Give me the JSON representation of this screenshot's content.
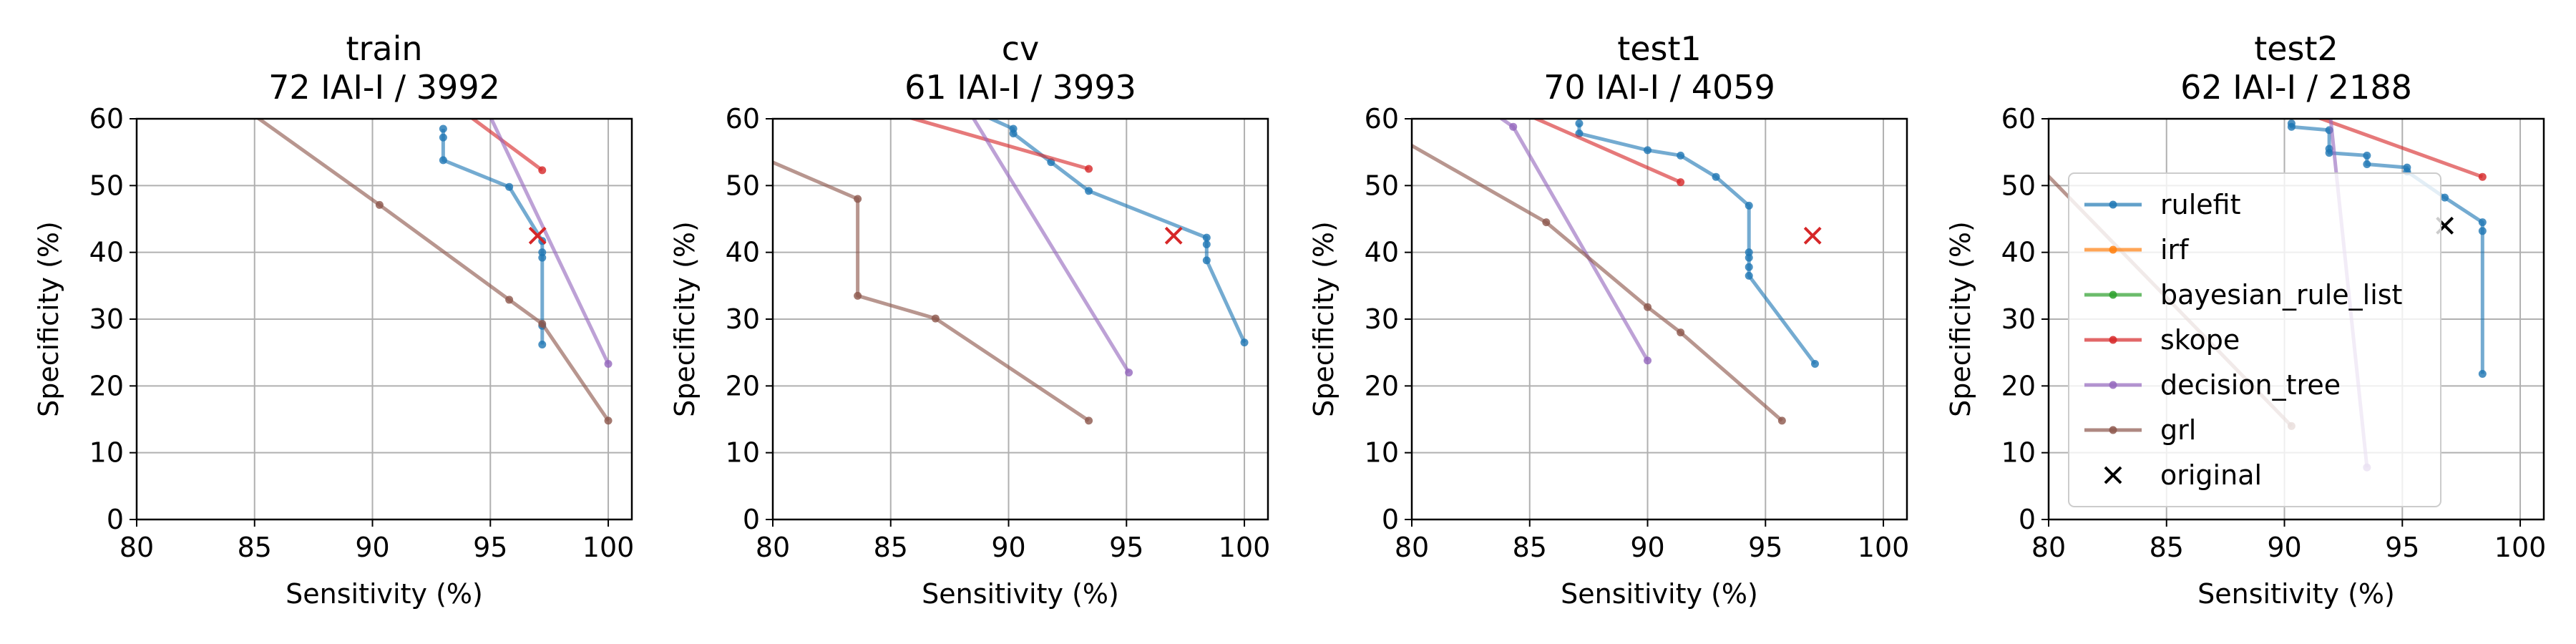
{
  "colors": {
    "rulefit": "#1f77b4",
    "irf": "#ff7f0e",
    "bayesian_rule_list": "#2ca02c",
    "skope": "#d62728",
    "decision_tree": "#9467bd",
    "grl": "#8c564b",
    "original": "#d62728"
  },
  "chart_data": [
    {
      "type": "line",
      "title_line1": "train",
      "title_line2": "72 IAI-I / 3992",
      "xlabel": "Sensitivity (%)",
      "ylabel": "Specificity (%)",
      "xlim": [
        80,
        101
      ],
      "ylim": [
        0,
        60
      ],
      "xticks": [
        80,
        85,
        90,
        95,
        100
      ],
      "yticks": [
        0,
        10,
        20,
        30,
        40,
        50,
        60
      ],
      "grid": true,
      "series": [
        {
          "name": "rulefit",
          "x": [
            93.0,
            93.0,
            93.0,
            95.8,
            97.2,
            97.2,
            97.2,
            97.2,
            97.2
          ],
          "y": [
            58.5,
            57.2,
            53.8,
            49.8,
            41.7,
            40.0,
            39.2,
            29.0,
            26.2
          ]
        },
        {
          "name": "skope",
          "x": [
            93.5,
            97.2
          ],
          "y": [
            62,
            52.3
          ]
        },
        {
          "name": "decision_tree",
          "x": [
            94.5,
            100.0
          ],
          "y": [
            64,
            23.3
          ]
        },
        {
          "name": "grl",
          "x": [
            84.0,
            90.3,
            95.8,
            97.2,
            100.0
          ],
          "y": [
            63,
            47.1,
            32.9,
            29.3,
            14.8
          ]
        }
      ],
      "original": {
        "x": 97.0,
        "y": 42.5
      },
      "legend": false
    },
    {
      "type": "line",
      "title_line1": "cv",
      "title_line2": "61 IAI-I / 3993",
      "xlabel": "Sensitivity (%)",
      "ylabel": "Specificity (%)",
      "xlim": [
        80,
        101
      ],
      "ylim": [
        0,
        60
      ],
      "xticks": [
        80,
        85,
        90,
        95,
        100
      ],
      "yticks": [
        0,
        10,
        20,
        30,
        40,
        50,
        60
      ],
      "grid": true,
      "series": [
        {
          "name": "rulefit",
          "x": [
            88.0,
            90.2,
            90.2,
            91.8,
            93.4,
            98.4,
            98.4,
            98.4,
            100.0
          ],
          "y": [
            62,
            58.5,
            57.8,
            53.5,
            49.2,
            42.2,
            41.2,
            38.8,
            26.5
          ]
        },
        {
          "name": "skope",
          "x": [
            84.0,
            93.4
          ],
          "y": [
            62,
            52.5
          ]
        },
        {
          "name": "decision_tree",
          "x": [
            88.0,
            95.1
          ],
          "y": [
            63,
            22.0
          ]
        },
        {
          "name": "grl",
          "x": [
            79.0,
            83.6,
            83.6,
            86.9,
            93.4
          ],
          "y": [
            55,
            48.0,
            33.5,
            30.1,
            14.8
          ]
        }
      ],
      "original": {
        "x": 97.0,
        "y": 42.5
      },
      "legend": false
    },
    {
      "type": "line",
      "title_line1": "test1",
      "title_line2": "70 IAI-I / 4059",
      "xlabel": "Sensitivity (%)",
      "ylabel": "Specificity (%)",
      "xlim": [
        80,
        101
      ],
      "ylim": [
        0,
        60
      ],
      "xticks": [
        80,
        85,
        90,
        95,
        100
      ],
      "yticks": [
        0,
        10,
        20,
        30,
        40,
        50,
        60
      ],
      "grid": true,
      "series": [
        {
          "name": "rulefit",
          "x": [
            87.1,
            87.1,
            90.0,
            91.4,
            92.9,
            94.3,
            94.3,
            94.3,
            94.3,
            94.3,
            97.1
          ],
          "y": [
            59.3,
            57.8,
            55.3,
            54.5,
            51.3,
            47.0,
            40.0,
            39.2,
            37.8,
            36.5,
            23.3
          ]
        },
        {
          "name": "skope",
          "x": [
            84.0,
            91.4
          ],
          "y": [
            62,
            50.5
          ]
        },
        {
          "name": "decision_tree",
          "x": [
            83.0,
            84.3,
            90.0
          ],
          "y": [
            62,
            58.8,
            23.8
          ]
        },
        {
          "name": "grl",
          "x": [
            79.0,
            85.7,
            90.0,
            91.4,
            95.7
          ],
          "y": [
            58,
            44.5,
            31.8,
            28.0,
            14.8
          ]
        }
      ],
      "original": {
        "x": 97.0,
        "y": 42.5
      },
      "legend": false
    },
    {
      "type": "line",
      "title_line1": "test2",
      "title_line2": "62 IAI-I / 2188",
      "xlabel": "Sensitivity (%)",
      "ylabel": "Specificity (%)",
      "xlim": [
        80,
        101
      ],
      "ylim": [
        0,
        60
      ],
      "xticks": [
        80,
        85,
        90,
        95,
        100
      ],
      "yticks": [
        0,
        10,
        20,
        30,
        40,
        50,
        60
      ],
      "grid": true,
      "series": [
        {
          "name": "rulefit",
          "x": [
            90.3,
            90.3,
            91.9,
            91.9,
            91.9,
            93.5,
            93.5,
            95.2,
            95.2,
            96.8,
            98.4,
            98.4,
            98.4
          ],
          "y": [
            59.3,
            58.8,
            58.3,
            55.5,
            54.9,
            54.5,
            53.2,
            52.7,
            52.1,
            48.2,
            44.5,
            43.2,
            21.8
          ]
        },
        {
          "name": "irf",
          "x": [],
          "y": []
        },
        {
          "name": "bayesian_rule_list",
          "x": [],
          "y": []
        },
        {
          "name": "skope",
          "x": [
            90.0,
            98.4
          ],
          "y": [
            62,
            51.3
          ]
        },
        {
          "name": "decision_tree",
          "x": [
            91.9,
            93.5
          ],
          "y": [
            62,
            7.8
          ]
        },
        {
          "name": "grl",
          "x": [
            79.0,
            90.3
          ],
          "y": [
            55,
            14.0
          ]
        }
      ],
      "original": {
        "x": 96.8,
        "y": 44.0,
        "marker_color": "#000000"
      },
      "legend": true
    }
  ],
  "legend_items": [
    {
      "label": "rulefit",
      "key": "rulefit",
      "kind": "line"
    },
    {
      "label": "irf",
      "key": "irf",
      "kind": "line"
    },
    {
      "label": "bayesian_rule_list",
      "key": "bayesian_rule_list",
      "kind": "line"
    },
    {
      "label": "skope",
      "key": "skope",
      "kind": "line"
    },
    {
      "label": "decision_tree",
      "key": "decision_tree",
      "kind": "line"
    },
    {
      "label": "grl",
      "key": "grl",
      "kind": "line"
    },
    {
      "label": "original",
      "key": "original",
      "kind": "x"
    }
  ]
}
